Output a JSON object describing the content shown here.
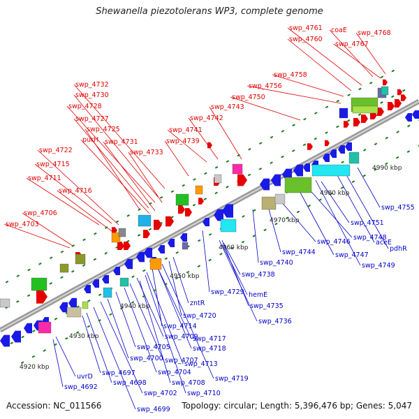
{
  "title": "Shewanella piezotolerans WP3, complete genome",
  "footer": {
    "accession": "Accession: NC_011566",
    "summary": "Topology: circular; Length: 5,396,476 bp; Genes: 5,047"
  },
  "colors": {
    "forward_label": "#e00000",
    "reverse_label": "#0000c8",
    "backbone": "#8a8a8a",
    "tick": "#1a7a1a"
  },
  "kbp_labels": [
    "4920 kbp",
    "4930 kbp",
    "4940 kbp",
    "4950 kbp",
    "4960 kbp",
    "4970 kbp",
    "4980 kbp",
    "4990 kbp"
  ],
  "forward_genes": [
    "swp_4703",
    "swp_4706",
    "swp_4711",
    "swp_4715",
    "swp_4716",
    "swp_4722",
    "purH",
    "swp_4725",
    "swp_4727",
    "swp_4728",
    "swp_4730",
    "swp_4731",
    "swp_4732",
    "swp_4733",
    "swp_4739",
    "swp_4741",
    "swp_4742",
    "swp_4743",
    "swp_4750",
    "swp_4756",
    "swp_4758",
    "swp_4760",
    "swp_4761",
    "coaE",
    "swp_4767",
    "swp_4768"
  ],
  "reverse_genes": [
    "uvrD",
    "swp_4692",
    "swp_4697",
    "swp_4698",
    "swp_4699",
    "swp_4700",
    "swp_4702",
    "swp_4704",
    "swp_4705",
    "swp_4707",
    "swp_4708",
    "swp_4709",
    "swp_4710",
    "swp_4713",
    "swp_4714",
    "swp_4717",
    "swp_4718",
    "swp_4719",
    "swp_4720",
    "zntR",
    "swp_4729",
    "swp_4735",
    "swp_4736",
    "hemE",
    "swp_4738",
    "swp_4740",
    "swp_4744",
    "swp_4746",
    "swp_4747",
    "swp_4748",
    "swp_4749",
    "swp_4751",
    "aceE",
    "pdhR",
    "swp_4755"
  ]
}
